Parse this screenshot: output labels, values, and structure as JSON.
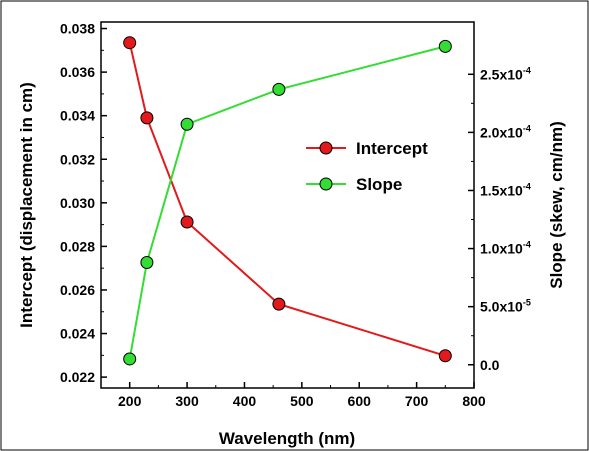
{
  "chart_data": {
    "type": "line",
    "x": [
      200,
      230,
      300,
      460,
      750
    ],
    "xlabel": "Wavelength (nm)",
    "xlim": [
      150,
      800
    ],
    "xticks": [
      "200",
      "300",
      "400",
      "500",
      "600",
      "700",
      "800"
    ],
    "ylabel_left": "Intercept (displacement in cm)",
    "ylim_left": [
      0.0215,
      0.0383
    ],
    "yticks_left": [
      "0.022",
      "0.024",
      "0.026",
      "0.028",
      "0.030",
      "0.032",
      "0.034",
      "0.036",
      "0.038"
    ],
    "ylabel_right": "Slope (skew, cm/nm)",
    "ylim_right": [
      -2e-05,
      0.000295
    ],
    "yticks_right": [
      {
        "base": "0.0",
        "exp": ""
      },
      {
        "base": "5.0x10",
        "exp": "-5"
      },
      {
        "base": "1.0x10",
        "exp": "-4"
      },
      {
        "base": "1.5x10",
        "exp": "-4"
      },
      {
        "base": "2.0x10",
        "exp": "-4"
      },
      {
        "base": "2.5x10",
        "exp": "-4"
      }
    ],
    "legend_position": "center-right",
    "series": [
      {
        "name": "Intercept",
        "axis": "left",
        "color": "#e31a1c",
        "values": [
          0.03735,
          0.0339,
          0.02912,
          0.02535,
          0.02298
        ]
      },
      {
        "name": "Slope",
        "axis": "right",
        "color": "#33dd33",
        "values": [
          5e-06,
          8.8e-05,
          0.000207,
          0.000237,
          0.000274
        ]
      }
    ]
  }
}
